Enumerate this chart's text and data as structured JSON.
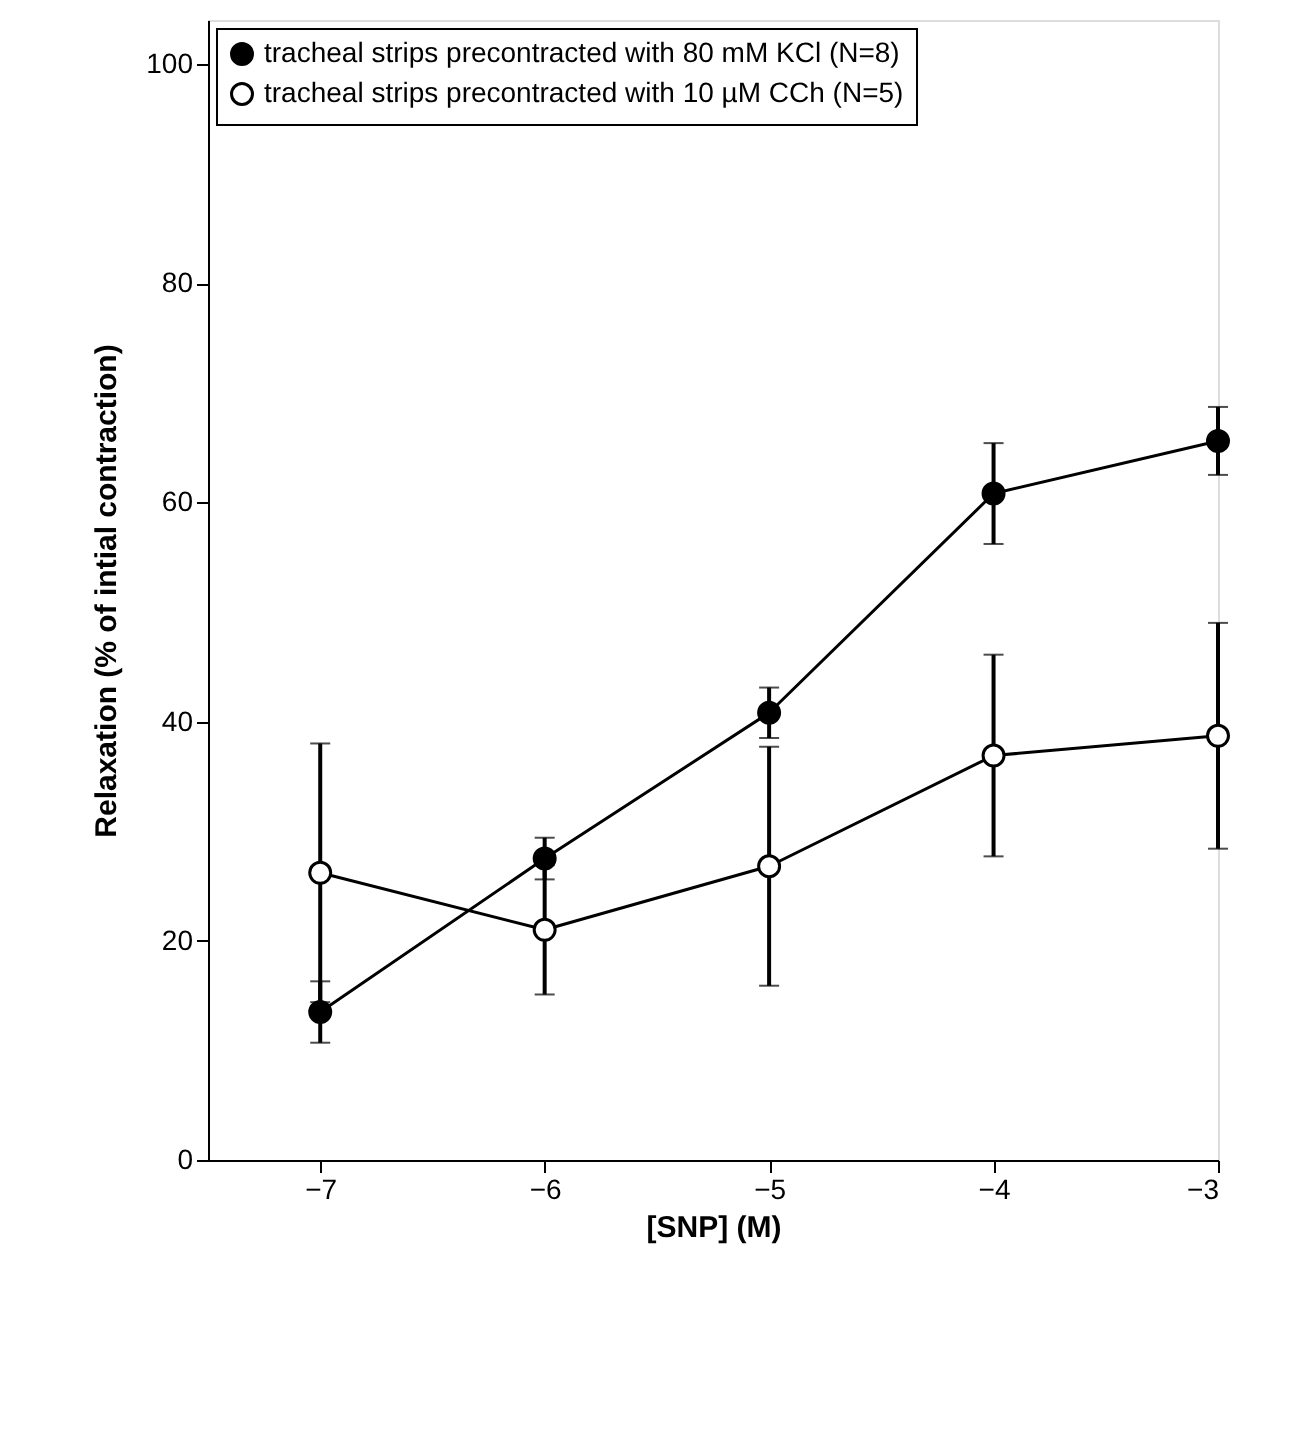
{
  "chart_data": {
    "type": "line",
    "xlabel": "[SNP] (M)",
    "ylabel": "Relaxation (% of intial contraction)",
    "x": [
      -7,
      -6,
      -5,
      -4,
      -3
    ],
    "series": [
      {
        "name": "tracheal strips precontracted with 80 mM KCl (N=8)",
        "color": "#000000",
        "values": [
          13.5,
          27.5,
          40.8,
          60.8,
          65.6
        ],
        "errors": [
          2.8,
          1.9,
          2.3,
          4.6,
          3.1
        ]
      },
      {
        "name": "tracheal strips precontracted with 10 µM CCh (N=5)",
        "color": "#ffffff",
        "values": [
          26.2,
          21.0,
          26.8,
          36.9,
          38.7
        ],
        "errors": [
          11.8,
          5.9,
          10.9,
          9.2,
          10.3
        ]
      }
    ],
    "xlim": [
      -7.5,
      -3
    ],
    "xticks": [
      -7,
      -6,
      -5,
      -4,
      -3
    ],
    "ylim": [
      0,
      104
    ],
    "yticks": [
      0,
      20,
      40,
      60,
      80,
      100
    ],
    "marker": "circle",
    "line_style": "solid",
    "grid": false,
    "legend": "top left"
  }
}
